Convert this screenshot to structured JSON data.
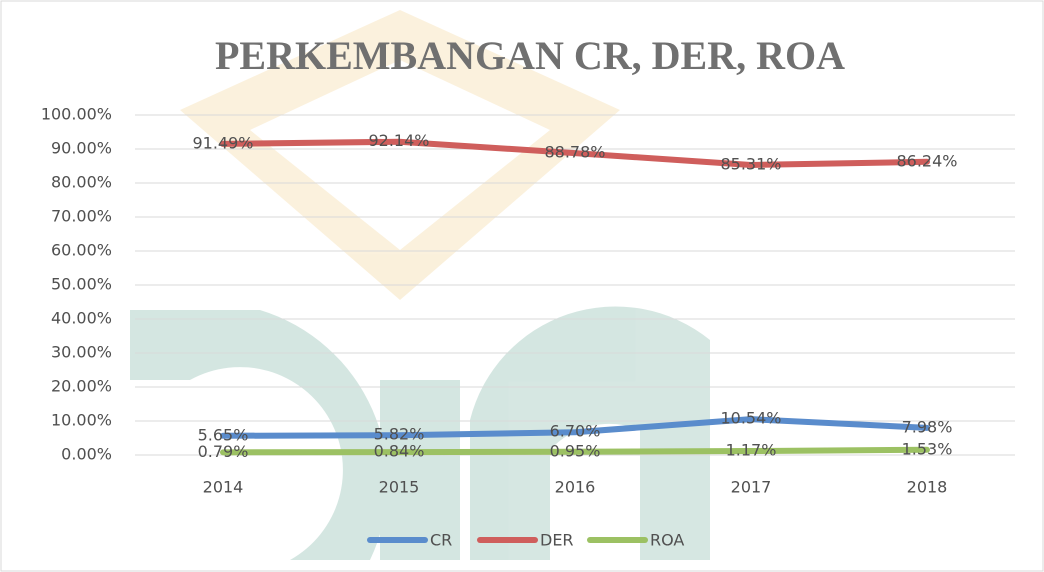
{
  "chart_data": {
    "type": "line",
    "title": "PERKEMBANGAN CR, DER, ROA",
    "categories": [
      "2014",
      "2015",
      "2016",
      "2017",
      "2018"
    ],
    "series": [
      {
        "name": "CR",
        "color": "#5a8ccc",
        "values": [
          5.65,
          5.82,
          6.7,
          10.54,
          7.98
        ],
        "value_labels": [
          "5.65%",
          "5.82%",
          "6.70%",
          "10.54%",
          "7.98%"
        ]
      },
      {
        "name": "DER",
        "color": "#cf5e5c",
        "values": [
          91.49,
          92.14,
          88.78,
          85.31,
          86.24
        ],
        "value_labels": [
          "91.49%",
          "92.14%",
          "88.78%",
          "85.31%",
          "86.24%"
        ]
      },
      {
        "name": "ROA",
        "color": "#9cc163",
        "values": [
          0.79,
          0.84,
          0.95,
          1.17,
          1.53
        ],
        "value_labels": [
          "0.79%",
          "0.84%",
          "0.95%",
          "1.17%",
          "1.53%"
        ]
      }
    ],
    "ylim": [
      0,
      100
    ],
    "yticks": [
      {
        "value": 0,
        "label": "0.00%"
      },
      {
        "value": 10,
        "label": "10.00%"
      },
      {
        "value": 20,
        "label": "20.00%"
      },
      {
        "value": 30,
        "label": "30.00%"
      },
      {
        "value": 40,
        "label": "40.00%"
      },
      {
        "value": 50,
        "label": "50.00%"
      },
      {
        "value": 60,
        "label": "60.00%"
      },
      {
        "value": 70,
        "label": "70.00%"
      },
      {
        "value": 80,
        "label": "80.00%"
      },
      {
        "value": 90,
        "label": "90.00%"
      },
      {
        "value": 100,
        "label": "100.00%"
      }
    ],
    "grid": true,
    "legend": "bottom"
  }
}
